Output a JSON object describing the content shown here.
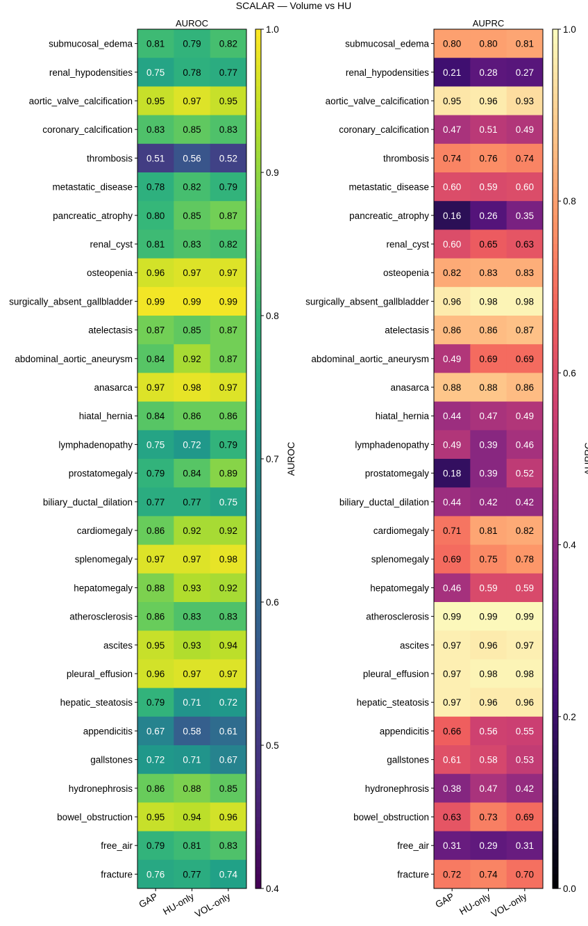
{
  "title": "SCALAR — Volume vs HU",
  "chart_data": [
    {
      "type": "heatmap",
      "title": "AUROC",
      "colormap": "viridis",
      "colorbar_label": "AUROC",
      "vlim": [
        0.4,
        1.0
      ],
      "colorbar_ticks": [
        "0.4",
        "0.5",
        "0.6",
        "0.7",
        "0.8",
        "0.9",
        "1.0"
      ],
      "columns": [
        "GAP",
        "HU-only",
        "VOL-only"
      ],
      "rows": [
        "submucosal_edema",
        "renal_hypodensities",
        "aortic_valve_calcification",
        "coronary_calcification",
        "thrombosis",
        "metastatic_disease",
        "pancreatic_atrophy",
        "renal_cyst",
        "osteopenia",
        "surgically_absent_gallbladder",
        "atelectasis",
        "abdominal_aortic_aneurysm",
        "anasarca",
        "hiatal_hernia",
        "lymphadenopathy",
        "prostatomegaly",
        "biliary_ductal_dilation",
        "cardiomegaly",
        "splenomegaly",
        "hepatomegaly",
        "atherosclerosis",
        "ascites",
        "pleural_effusion",
        "hepatic_steatosis",
        "appendicitis",
        "gallstones",
        "hydronephrosis",
        "bowel_obstruction",
        "free_air",
        "fracture"
      ],
      "values": [
        [
          0.81,
          0.79,
          0.82
        ],
        [
          0.75,
          0.78,
          0.77
        ],
        [
          0.95,
          0.97,
          0.95
        ],
        [
          0.83,
          0.85,
          0.83
        ],
        [
          0.51,
          0.56,
          0.52
        ],
        [
          0.78,
          0.82,
          0.79
        ],
        [
          0.8,
          0.85,
          0.87
        ],
        [
          0.81,
          0.83,
          0.82
        ],
        [
          0.96,
          0.97,
          0.97
        ],
        [
          0.99,
          0.99,
          0.99
        ],
        [
          0.87,
          0.85,
          0.87
        ],
        [
          0.84,
          0.92,
          0.87
        ],
        [
          0.97,
          0.98,
          0.97
        ],
        [
          0.84,
          0.86,
          0.86
        ],
        [
          0.75,
          0.72,
          0.79
        ],
        [
          0.79,
          0.84,
          0.89
        ],
        [
          0.77,
          0.77,
          0.75
        ],
        [
          0.86,
          0.92,
          0.92
        ],
        [
          0.97,
          0.97,
          0.98
        ],
        [
          0.88,
          0.93,
          0.92
        ],
        [
          0.86,
          0.83,
          0.83
        ],
        [
          0.95,
          0.93,
          0.94
        ],
        [
          0.96,
          0.97,
          0.97
        ],
        [
          0.79,
          0.71,
          0.72
        ],
        [
          0.67,
          0.58,
          0.61
        ],
        [
          0.72,
          0.71,
          0.67
        ],
        [
          0.86,
          0.88,
          0.85
        ],
        [
          0.95,
          0.94,
          0.96
        ],
        [
          0.79,
          0.81,
          0.83
        ],
        [
          0.76,
          0.77,
          0.74
        ]
      ]
    },
    {
      "type": "heatmap",
      "title": "AUPRC",
      "colormap": "magma",
      "colorbar_label": "AUPRC",
      "vlim": [
        0.0,
        1.0
      ],
      "colorbar_ticks": [
        "0.0",
        "0.2",
        "0.4",
        "0.6",
        "0.8",
        "1.0"
      ],
      "columns": [
        "GAP",
        "HU-only",
        "VOL-only"
      ],
      "rows": [
        "submucosal_edema",
        "renal_hypodensities",
        "aortic_valve_calcification",
        "coronary_calcification",
        "thrombosis",
        "metastatic_disease",
        "pancreatic_atrophy",
        "renal_cyst",
        "osteopenia",
        "surgically_absent_gallbladder",
        "atelectasis",
        "abdominal_aortic_aneurysm",
        "anasarca",
        "hiatal_hernia",
        "lymphadenopathy",
        "prostatomegaly",
        "biliary_ductal_dilation",
        "cardiomegaly",
        "splenomegaly",
        "hepatomegaly",
        "atherosclerosis",
        "ascites",
        "pleural_effusion",
        "hepatic_steatosis",
        "appendicitis",
        "gallstones",
        "hydronephrosis",
        "bowel_obstruction",
        "free_air",
        "fracture"
      ],
      "values": [
        [
          0.8,
          0.8,
          0.81
        ],
        [
          0.21,
          0.28,
          0.27
        ],
        [
          0.95,
          0.96,
          0.93
        ],
        [
          0.47,
          0.51,
          0.49
        ],
        [
          0.74,
          0.76,
          0.74
        ],
        [
          0.6,
          0.59,
          0.6
        ],
        [
          0.16,
          0.26,
          0.35
        ],
        [
          0.6,
          0.65,
          0.63
        ],
        [
          0.82,
          0.83,
          0.83
        ],
        [
          0.96,
          0.98,
          0.98
        ],
        [
          0.86,
          0.86,
          0.87
        ],
        [
          0.49,
          0.69,
          0.69
        ],
        [
          0.88,
          0.88,
          0.86
        ],
        [
          0.44,
          0.47,
          0.49
        ],
        [
          0.49,
          0.39,
          0.46
        ],
        [
          0.18,
          0.39,
          0.52
        ],
        [
          0.44,
          0.42,
          0.42
        ],
        [
          0.71,
          0.81,
          0.82
        ],
        [
          0.69,
          0.75,
          0.78
        ],
        [
          0.46,
          0.59,
          0.59
        ],
        [
          0.99,
          0.99,
          0.99
        ],
        [
          0.97,
          0.96,
          0.97
        ],
        [
          0.97,
          0.98,
          0.98
        ],
        [
          0.97,
          0.96,
          0.96
        ],
        [
          0.66,
          0.56,
          0.55
        ],
        [
          0.61,
          0.58,
          0.53
        ],
        [
          0.38,
          0.47,
          0.42
        ],
        [
          0.63,
          0.73,
          0.69
        ],
        [
          0.31,
          0.29,
          0.31
        ],
        [
          0.72,
          0.74,
          0.7
        ]
      ]
    }
  ]
}
